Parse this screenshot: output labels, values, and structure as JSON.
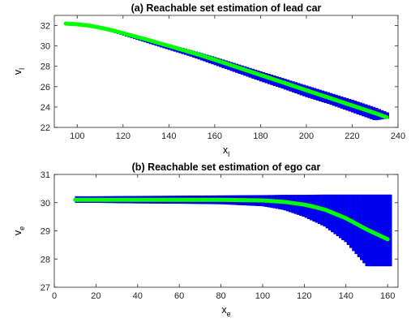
{
  "chart_data": [
    {
      "type": "area",
      "title": "(a) Reachable set estimation of lead car",
      "xlabel": {
        "base": "x",
        "sub": "l"
      },
      "ylabel": {
        "base": "v",
        "sub": "l"
      },
      "xlim": [
        90,
        240
      ],
      "ylim": [
        22,
        33
      ],
      "xticks": [
        100,
        120,
        140,
        160,
        180,
        200,
        220,
        240
      ],
      "yticks": [
        22,
        24,
        26,
        28,
        30,
        32
      ],
      "grid": false,
      "colors": {
        "reach_set": "#0000ff",
        "reach_edge": "#0000b4",
        "trajectory": "#00ff00"
      },
      "series": [
        {
          "role": "reachable-set",
          "x": [
            95,
            100,
            105,
            110,
            115,
            120,
            130,
            140,
            150,
            160,
            170,
            180,
            190,
            200,
            210,
            220,
            230,
            236
          ],
          "upper": [
            32.2,
            32.15,
            32.05,
            31.85,
            31.6,
            31.3,
            30.75,
            30.15,
            29.55,
            28.9,
            28.2,
            27.5,
            26.8,
            26.1,
            25.4,
            24.7,
            23.95,
            23.4
          ],
          "lower": [
            32.2,
            32.1,
            31.95,
            31.7,
            31.4,
            31.05,
            30.35,
            29.65,
            28.95,
            28.15,
            27.35,
            26.55,
            25.8,
            25.0,
            24.3,
            23.5,
            22.7,
            22.9
          ]
        },
        {
          "role": "simulation-trace",
          "x": [
            95,
            100,
            105,
            110,
            115,
            120,
            130,
            140,
            150,
            160,
            170,
            180,
            190,
            200,
            210,
            220,
            230,
            235
          ],
          "y": [
            32.2,
            32.12,
            32.0,
            31.8,
            31.55,
            31.25,
            30.65,
            30.0,
            29.35,
            28.65,
            27.9,
            27.15,
            26.4,
            25.65,
            24.9,
            24.15,
            23.4,
            23.0
          ]
        }
      ]
    },
    {
      "type": "area",
      "title": "(b) Reachable set estimation of ego car",
      "xlabel": {
        "base": "x",
        "sub": "e"
      },
      "ylabel": {
        "base": "v",
        "sub": "e"
      },
      "xlim": [
        0,
        165
      ],
      "ylim": [
        27,
        31
      ],
      "xticks": [
        0,
        20,
        40,
        60,
        80,
        100,
        120,
        140,
        160
      ],
      "yticks": [
        27,
        28,
        29,
        30,
        31
      ],
      "grid": false,
      "colors": {
        "reach_set": "#0000ff",
        "reach_edge": "#0000b4",
        "trajectory": "#00ff00"
      },
      "series": [
        {
          "role": "reachable-set",
          "x": [
            10,
            20,
            40,
            60,
            80,
            100,
            110,
            120,
            130,
            140,
            150,
            155,
            160,
            162
          ],
          "upper": [
            30.22,
            30.22,
            30.23,
            30.24,
            30.25,
            30.26,
            30.27,
            30.27,
            30.28,
            30.28,
            30.28,
            30.28,
            30.28,
            30.28
          ],
          "lower": [
            30.0,
            30.0,
            29.98,
            29.97,
            29.95,
            29.88,
            29.75,
            29.5,
            29.15,
            28.6,
            27.75,
            27.75,
            27.75,
            27.75
          ]
        },
        {
          "role": "simulation-trace",
          "x": [
            10,
            20,
            40,
            60,
            80,
            100,
            110,
            120,
            125,
            130,
            140,
            150,
            160
          ],
          "y": [
            30.1,
            30.1,
            30.1,
            30.1,
            30.1,
            30.08,
            30.03,
            29.93,
            29.85,
            29.75,
            29.45,
            29.05,
            28.7
          ]
        }
      ]
    }
  ]
}
